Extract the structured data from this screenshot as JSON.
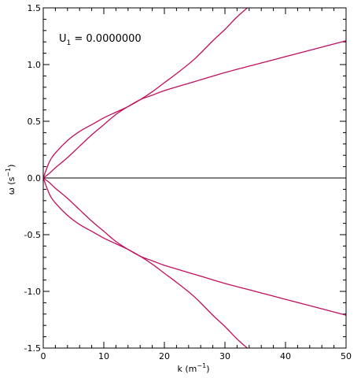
{
  "chart_data": {
    "type": "line",
    "xlabel": "k (m",
    "xlabel_sup": "−1",
    "xlabel_close": ")",
    "ylabel": "ω (s",
    "ylabel_sup": "−1",
    "ylabel_close": ")",
    "xlim": [
      0,
      50
    ],
    "ylim": [
      -1.5,
      1.5
    ],
    "xticks": [
      0,
      10,
      20,
      30,
      40,
      50
    ],
    "yticks": [
      -1.5,
      -1.0,
      -0.5,
      0.0,
      0.5,
      1.0,
      1.5
    ],
    "xtick_labels": [
      "0",
      "10",
      "20",
      "30",
      "40",
      "50"
    ],
    "ytick_labels": [
      "-1.5",
      "-1.0",
      "-0.5",
      "0.0",
      "0.5",
      "1.0",
      "1.5"
    ],
    "annotation": {
      "prefix": "U",
      "subscript": "1",
      "suffix": " = 0.0000000"
    },
    "zero_line": true,
    "colors": {
      "curve": "#c0105e",
      "axis": "#000000"
    },
    "series": [
      {
        "x": [
          0,
          1,
          2,
          4,
          6,
          8,
          10,
          12,
          14,
          16,
          18,
          20,
          22,
          25,
          28,
          30,
          32,
          33.7
        ],
        "y": [
          0,
          0.14,
          0.22,
          0.33,
          0.41,
          0.47,
          0.53,
          0.58,
          0.63,
          0.69,
          0.76,
          0.84,
          0.92,
          1.05,
          1.21,
          1.31,
          1.42,
          1.5
        ]
      },
      {
        "x": [
          0,
          1,
          2,
          4,
          6,
          8,
          10,
          12,
          14,
          16,
          18,
          20,
          25,
          30,
          35,
          40,
          45,
          50
        ],
        "y": [
          0,
          0.04,
          0.09,
          0.18,
          0.28,
          0.38,
          0.47,
          0.56,
          0.63,
          0.69,
          0.73,
          0.77,
          0.85,
          0.93,
          1.0,
          1.07,
          1.14,
          1.21
        ]
      },
      {
        "x": [
          0,
          1,
          2,
          4,
          6,
          8,
          10,
          12,
          14,
          16,
          18,
          20,
          25,
          30,
          35,
          40,
          45,
          50
        ],
        "y": [
          0,
          -0.04,
          -0.09,
          -0.18,
          -0.28,
          -0.38,
          -0.47,
          -0.56,
          -0.63,
          -0.69,
          -0.73,
          -0.77,
          -0.85,
          -0.93,
          -1.0,
          -1.07,
          -1.14,
          -1.21
        ]
      },
      {
        "x": [
          0,
          1,
          2,
          4,
          6,
          8,
          10,
          12,
          14,
          16,
          18,
          20,
          22,
          25,
          28,
          30,
          32,
          33.7
        ],
        "y": [
          0,
          -0.14,
          -0.22,
          -0.33,
          -0.41,
          -0.47,
          -0.53,
          -0.58,
          -0.63,
          -0.69,
          -0.76,
          -0.84,
          -0.92,
          -1.05,
          -1.21,
          -1.31,
          -1.42,
          -1.5
        ]
      }
    ]
  }
}
